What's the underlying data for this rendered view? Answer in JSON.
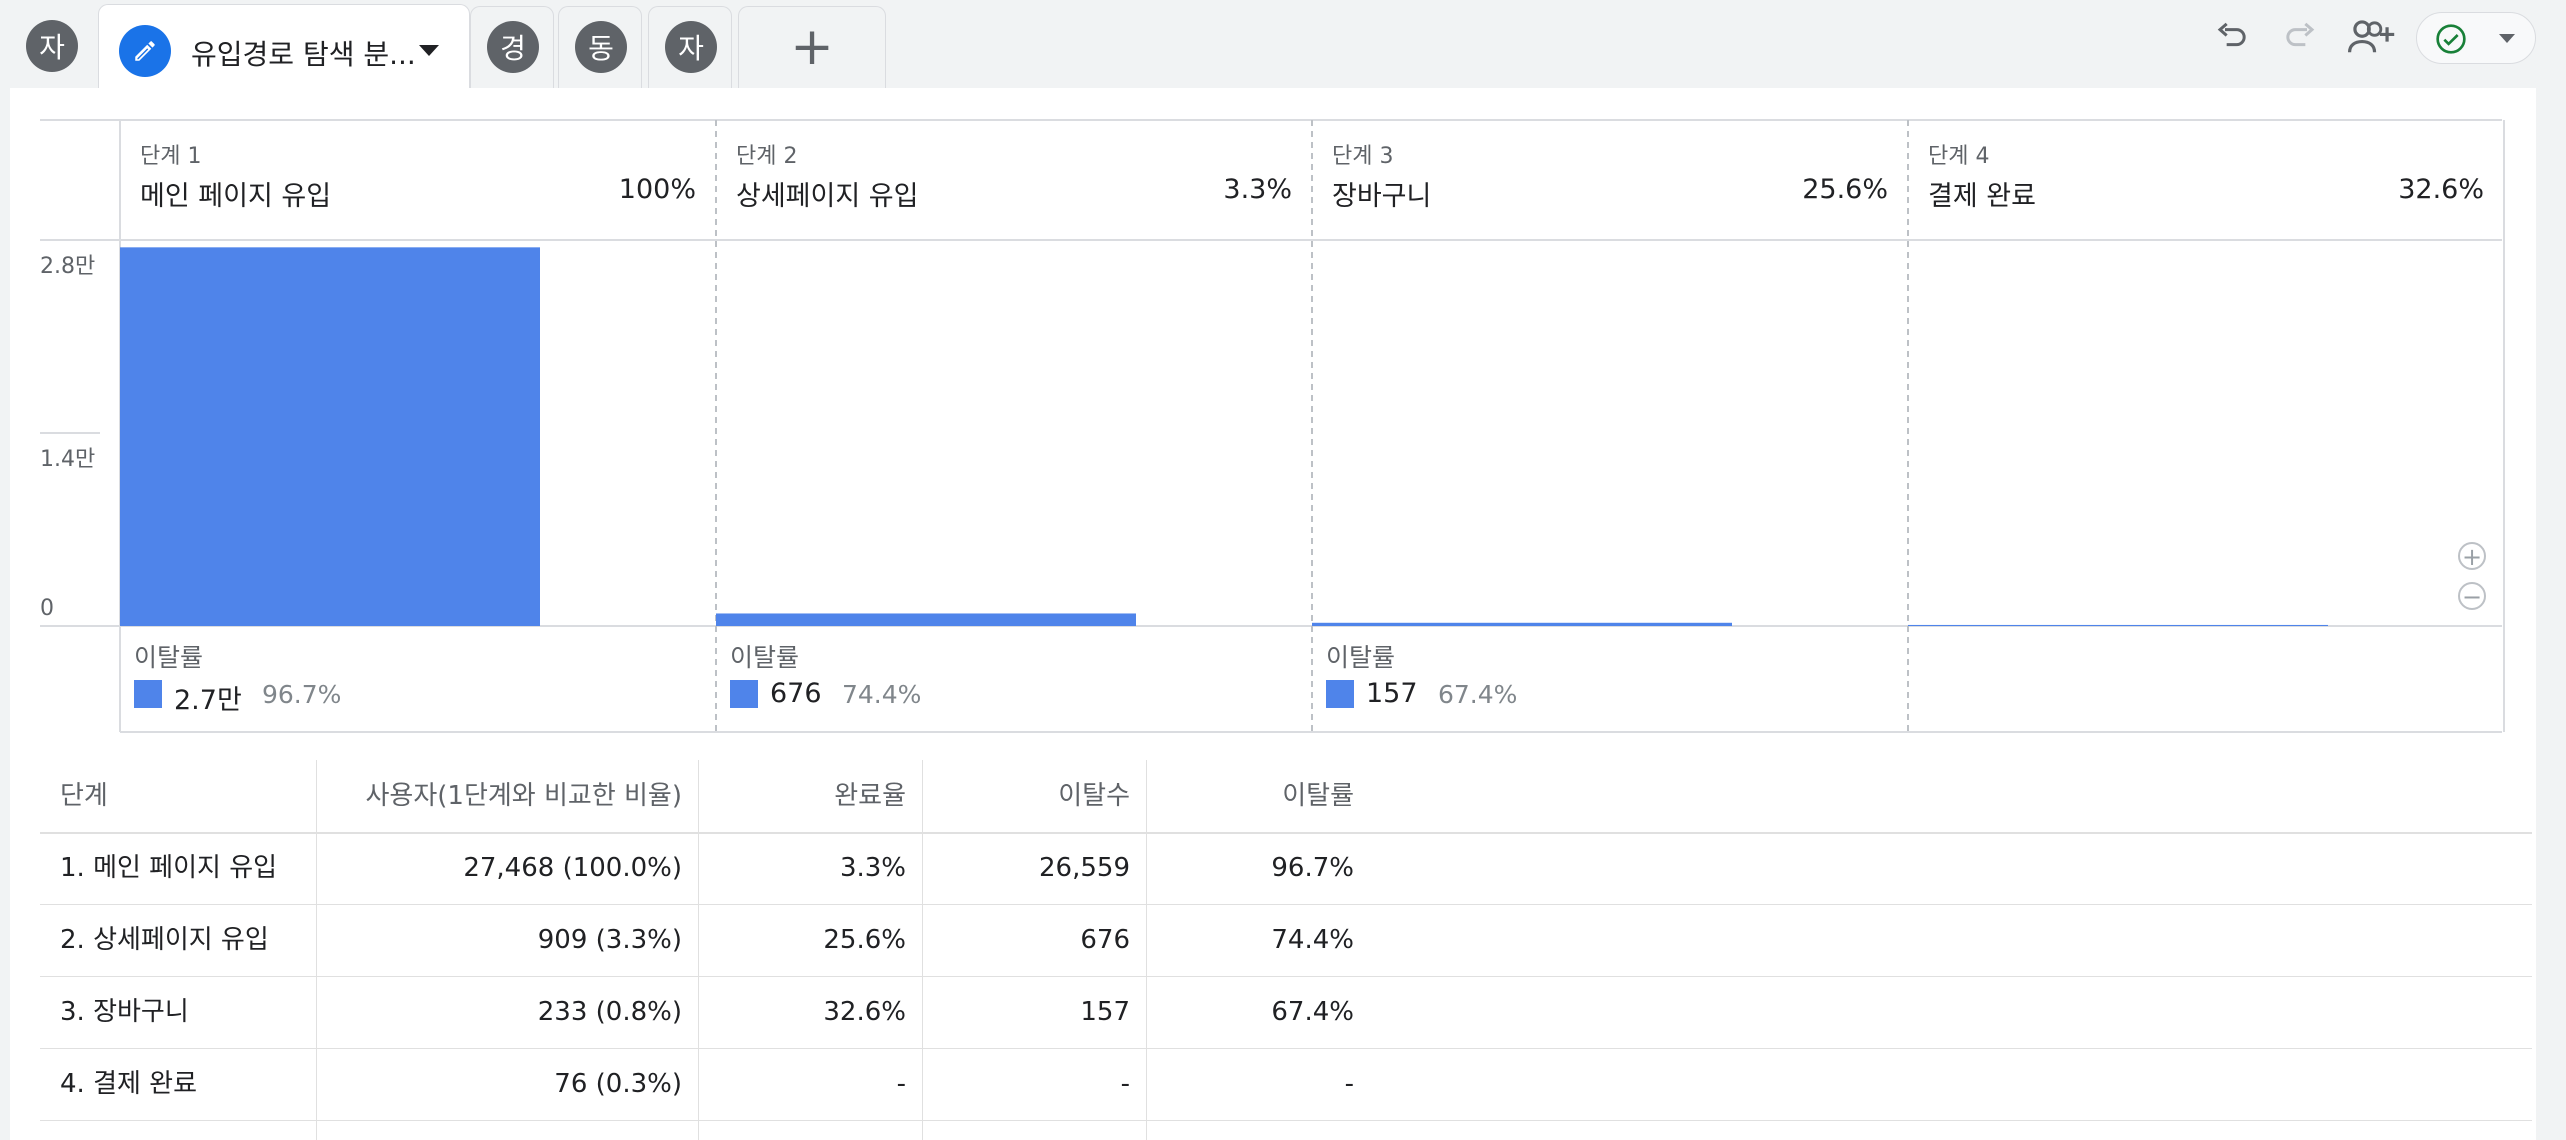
{
  "tabs": {
    "left": [
      {
        "letter": "자"
      }
    ],
    "active": {
      "title": "유입경로 탐색 분..."
    },
    "right": [
      {
        "letter": "경"
      },
      {
        "letter": "동"
      },
      {
        "letter": "자"
      }
    ],
    "add_label": "+"
  },
  "toolbar": {
    "icons": [
      "undo-icon",
      "redo-icon",
      "share-user-icon",
      "check-circle-icon",
      "chevron-down-icon"
    ]
  },
  "chart": {
    "y_ticks": [
      "2.8만",
      "1.4만",
      "0"
    ],
    "steps": [
      {
        "num": "단계 1",
        "name": "메인 페이지 유입",
        "pct": "100%",
        "drop_label": "이탈률",
        "drop_count": "2.7만",
        "drop_rate": "96.7%"
      },
      {
        "num": "단계 2",
        "name": "상세페이지 유입",
        "pct": "3.3%",
        "drop_label": "이탈률",
        "drop_count": "676",
        "drop_rate": "74.4%"
      },
      {
        "num": "단계 3",
        "name": "장바구니",
        "pct": "25.6%",
        "drop_label": "이탈률",
        "drop_count": "157",
        "drop_rate": "67.4%"
      },
      {
        "num": "단계 4",
        "name": "결제 완료",
        "pct": "32.6%"
      }
    ],
    "zoom": {
      "in": "+",
      "out": "−"
    }
  },
  "chart_data": {
    "type": "bar",
    "categories": [
      "단계 1",
      "단계 2",
      "단계 3",
      "단계 4"
    ],
    "values": [
      27468,
      909,
      233,
      76
    ],
    "ylim": [
      0,
      28000
    ],
    "y_ticks": [
      "0",
      "1.4만",
      "2.8만"
    ],
    "color": "#4f84ea"
  },
  "table": {
    "headers": [
      "단계",
      "사용자(1단계와 비교한 비율)",
      "완료율",
      "이탈수",
      "이탈률"
    ],
    "rows": [
      [
        "1. 메인 페이지 유입",
        "27,468 (100.0%)",
        "3.3%",
        "26,559",
        "96.7%"
      ],
      [
        "2. 상세페이지 유입",
        "909 (3.3%)",
        "25.6%",
        "676",
        "74.4%"
      ],
      [
        "3. 장바구니",
        "233 (0.8%)",
        "32.6%",
        "157",
        "67.4%"
      ],
      [
        "4. 결제 완료",
        "76 (0.3%)",
        "-",
        "-",
        "-"
      ]
    ]
  },
  "colors": {
    "accent": "#1a73e8",
    "bar": "#4f84ea",
    "check": "#188038"
  }
}
